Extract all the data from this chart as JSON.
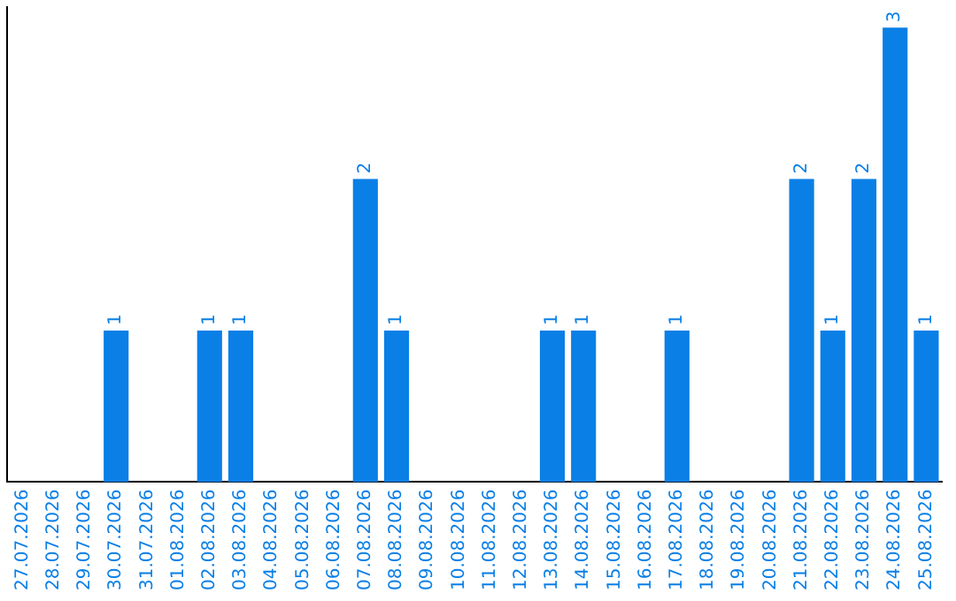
{
  "chart_data": {
    "type": "bar",
    "categories": [
      "27.07.2026",
      "28.07.2026",
      "29.07.2026",
      "30.07.2026",
      "31.07.2026",
      "01.08.2026",
      "02.08.2026",
      "03.08.2026",
      "04.08.2026",
      "05.08.2026",
      "06.08.2026",
      "07.08.2026",
      "08.08.2026",
      "09.08.2026",
      "10.08.2026",
      "11.08.2026",
      "12.08.2026",
      "13.08.2026",
      "14.08.2026",
      "15.08.2026",
      "16.08.2026",
      "17.08.2026",
      "18.08.2026",
      "19.08.2026",
      "20.08.2026",
      "21.08.2026",
      "22.08.2026",
      "23.08.2026",
      "24.08.2026",
      "25.08.2026"
    ],
    "values": [
      0,
      0,
      0,
      1,
      0,
      0,
      1,
      1,
      0,
      0,
      0,
      2,
      1,
      0,
      0,
      0,
      0,
      1,
      1,
      0,
      0,
      1,
      0,
      0,
      0,
      2,
      1,
      2,
      3,
      1
    ],
    "value_labels": [
      null,
      null,
      null,
      "1",
      null,
      null,
      "1",
      "1",
      null,
      null,
      null,
      "2",
      "1",
      null,
      null,
      null,
      null,
      "1",
      "1",
      null,
      null,
      "1",
      null,
      null,
      null,
      "2",
      "1",
      "2",
      "3",
      "1"
    ],
    "color": "#0a7fe6",
    "grid": false
  }
}
